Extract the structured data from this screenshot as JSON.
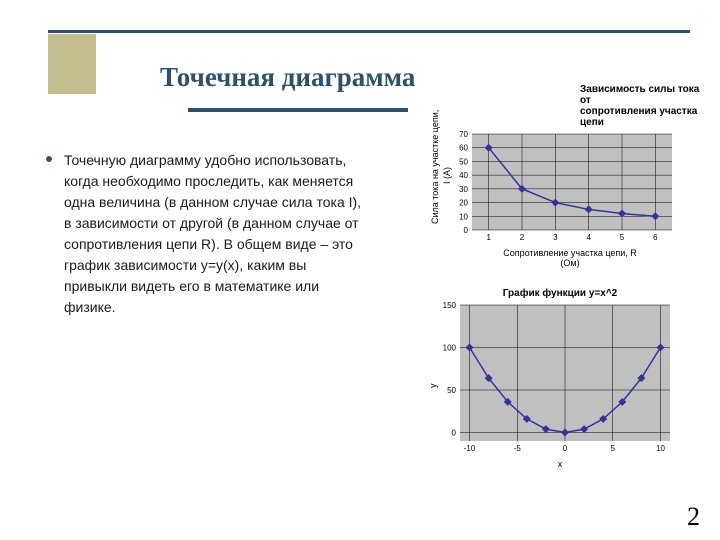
{
  "title": "Точечная диаграмма",
  "body_text": "Точечную диаграмму удобно использовать, когда необходимо проследить, как меняется одна величина (в данном случае сила тока I),  в зависимости от другой (в данном случае от сопротивления цепи R). В общем виде – это  график зависимости y=y(x), каким вы привыкли видеть его в математике или физике.",
  "page_number": "2",
  "chart1": {
    "title_line1": "Зависимость силы тока от",
    "title_line2": "сопротивления участка цепи",
    "ylabel_line1": "Сила тока на участке цепи,",
    "ylabel_line2": "I (А)",
    "xlabel_line1": "Сопротивление участка цепи, R",
    "xlabel_line2": "(Ом)",
    "x_ticks": [
      1,
      2,
      3,
      4,
      5,
      6
    ],
    "y_ticks": [
      0,
      10,
      20,
      30,
      40,
      50,
      60,
      70
    ],
    "data_x": [
      1,
      2,
      3,
      4,
      5,
      6
    ],
    "data_y": [
      60,
      30,
      20,
      15,
      12,
      10
    ],
    "xlim": [
      0.5,
      6.5
    ],
    "ylim": [
      0,
      70
    ],
    "plot_bg": "#c0c0c0",
    "grid_color": "#000000",
    "line_color": "#333399",
    "marker_fill": "#333399",
    "marker_size": 4
  },
  "chart2": {
    "title": "График функции y=x^2",
    "ylabel": "y",
    "xlabel": "x",
    "x_ticks": [
      -10,
      -5,
      0,
      5,
      10
    ],
    "y_ticks": [
      0,
      50,
      100,
      150
    ],
    "data_x": [
      -10,
      -8,
      -6,
      -4,
      -2,
      0,
      2,
      4,
      6,
      8,
      10
    ],
    "data_y": [
      100,
      64,
      36,
      16,
      4,
      0,
      4,
      16,
      36,
      64,
      100
    ],
    "xlim": [
      -11,
      11
    ],
    "ylim": [
      -10,
      150
    ],
    "plot_bg": "#c0c0c0",
    "grid_color": "#000000",
    "line_color": "#333399",
    "marker_fill": "#333399",
    "marker_size": 4
  }
}
